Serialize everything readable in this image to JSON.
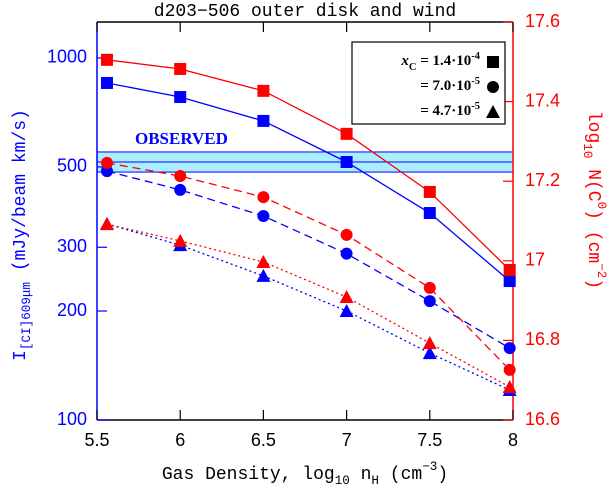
{
  "chart_data": {
    "type": "line",
    "title": "d203−506 outer disk and wind",
    "xlabel": [
      {
        "t": "Gas Density, log"
      },
      {
        "t": "10",
        "s": "sub"
      },
      {
        "t": " n"
      },
      {
        "t": "H",
        "s": "sub"
      },
      {
        "t": " (cm"
      },
      {
        "t": "−3",
        "s": "sup"
      },
      {
        "t": ")"
      }
    ],
    "ylabel": [
      {
        "t": "I"
      },
      {
        "t": "[CI]609μm",
        "s": "sub"
      },
      {
        "t": " (mJy/beam km/s)"
      }
    ],
    "y2label": [
      {
        "t": "log"
      },
      {
        "t": "10",
        "s": "sub"
      },
      {
        "t": " N(C"
      },
      {
        "t": "0",
        "s": "sup"
      },
      {
        "t": ") (cm"
      },
      {
        "t": "−2",
        "s": "sup"
      },
      {
        "t": ")"
      }
    ],
    "x": [
      5.56,
      6.0,
      6.5,
      7.0,
      7.5,
      7.98
    ],
    "xlim": [
      5.5,
      8
    ],
    "xticks": [
      5.5,
      6,
      6.5,
      7,
      7.5,
      8
    ],
    "ylim": [
      100,
      1257
    ],
    "yscale": "log",
    "yticks": [
      100,
      200,
      300,
      500,
      1000
    ],
    "y2lim": [
      16.6,
      17.6
    ],
    "y2ticks": [
      16.6,
      16.8,
      17,
      17.2,
      17.4,
      17.6
    ],
    "series": [
      {
        "axis": "y",
        "color": "#0000ff",
        "marker": "square",
        "dash": "solid",
        "values": [
          853,
          780,
          670,
          516,
          373,
          242
        ]
      },
      {
        "axis": "y",
        "color": "#0000ff",
        "marker": "circle",
        "dash": "dashed",
        "values": [
          487,
          432,
          366,
          288,
          213,
          158
        ]
      },
      {
        "axis": "y",
        "color": "#0000ff",
        "marker": "triangle",
        "dash": "dotted",
        "values": [
          348,
          304,
          250,
          200,
          153,
          121
        ]
      },
      {
        "axis": "y2",
        "color": "#ff0000",
        "marker": "square",
        "dash": "solid",
        "values": [
          17.505,
          17.482,
          17.427,
          17.319,
          17.173,
          16.977
        ]
      },
      {
        "axis": "y2",
        "color": "#ff0000",
        "marker": "circle",
        "dash": "dashed",
        "values": [
          17.246,
          17.213,
          17.16,
          17.065,
          16.932,
          16.726
        ]
      },
      {
        "axis": "y2",
        "color": "#ff0000",
        "marker": "triangle",
        "dash": "dotted",
        "values": [
          17.092,
          17.05,
          16.997,
          16.909,
          16.793,
          16.683
        ]
      }
    ],
    "observed": {
      "label": "OBSERVED",
      "low": 484,
      "high": 550,
      "value": 516,
      "color": "#0000ff",
      "fill": "#aaeeff"
    },
    "legend": [
      {
        "marker": "square",
        "parts": [
          {
            "t": "x",
            "i": true
          },
          {
            "t": "C",
            "s": "sub"
          },
          {
            "t": " = 1.4·10"
          },
          {
            "t": "-4",
            "s": "sup"
          }
        ]
      },
      {
        "marker": "circle",
        "parts": [
          {
            "t": "= 7.0·10"
          },
          {
            "t": "-5",
            "s": "sup"
          }
        ]
      },
      {
        "marker": "triangle",
        "parts": [
          {
            "t": "= 4.7·10"
          },
          {
            "t": "-5",
            "s": "sup"
          }
        ]
      }
    ]
  }
}
